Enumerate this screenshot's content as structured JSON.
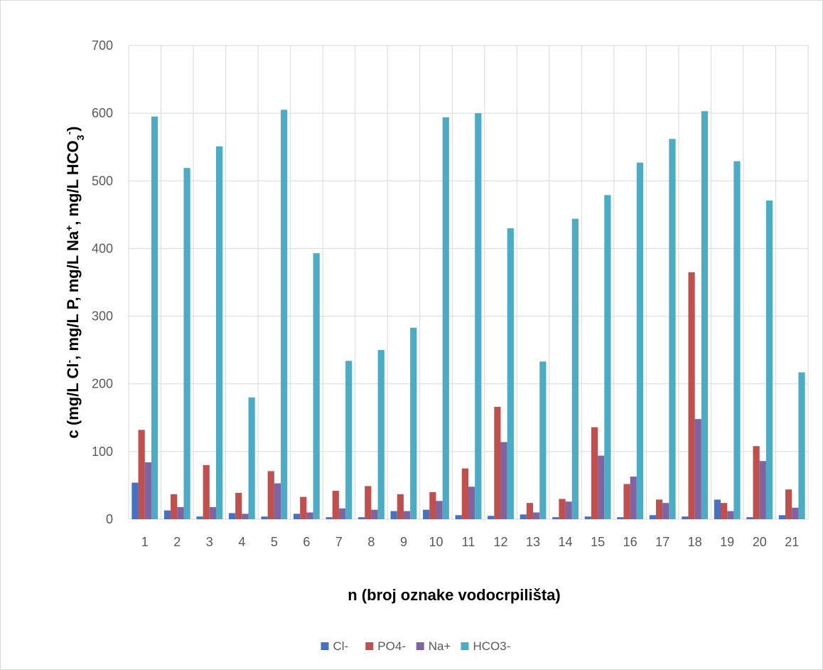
{
  "chart_data": {
    "type": "bar",
    "title": "",
    "xlabel": "n (broj oznake vodocrpilišta)",
    "ylabel_parts": {
      "p1": "c (mg/L Cl",
      "p1_sup": "-",
      "p2": ", mg/L P, mg/L Na",
      "p2_sup": "+",
      "p3": ", mg/L HCO",
      "p3_sub": "3",
      "p3_sup": "-",
      "p4": ")"
    },
    "ylim": [
      0,
      700
    ],
    "yticks": [
      0,
      100,
      200,
      300,
      400,
      500,
      600,
      700
    ],
    "grid": true,
    "legend_position": "bottom",
    "categories": [
      "1",
      "2",
      "3",
      "4",
      "5",
      "6",
      "7",
      "8",
      "9",
      "10",
      "11",
      "12",
      "13",
      "14",
      "15",
      "16",
      "17",
      "18",
      "19",
      "20",
      "21"
    ],
    "series": [
      {
        "name": "Cl-",
        "color": "#4472c4",
        "values": [
          54,
          13,
          4,
          9,
          4,
          8,
          3,
          3,
          12,
          14,
          6,
          5,
          7,
          3,
          4,
          3,
          6,
          4,
          29,
          3,
          6
        ]
      },
      {
        "name": "PO4-",
        "color": "#c0504d",
        "values": [
          132,
          37,
          80,
          39,
          71,
          33,
          42,
          49,
          37,
          40,
          75,
          166,
          24,
          30,
          136,
          52,
          29,
          365,
          24,
          108,
          44
        ]
      },
      {
        "name": "Na+",
        "color": "#8064a2",
        "values": [
          84,
          18,
          18,
          8,
          53,
          10,
          16,
          14,
          12,
          27,
          48,
          114,
          10,
          26,
          94,
          63,
          24,
          148,
          12,
          86,
          17
        ]
      },
      {
        "name": "HCO3-",
        "color": "#4bacc6",
        "values": [
          595,
          519,
          551,
          180,
          605,
          393,
          234,
          250,
          283,
          594,
          600,
          430,
          233,
          444,
          479,
          527,
          562,
          603,
          529,
          471,
          217
        ]
      }
    ]
  }
}
